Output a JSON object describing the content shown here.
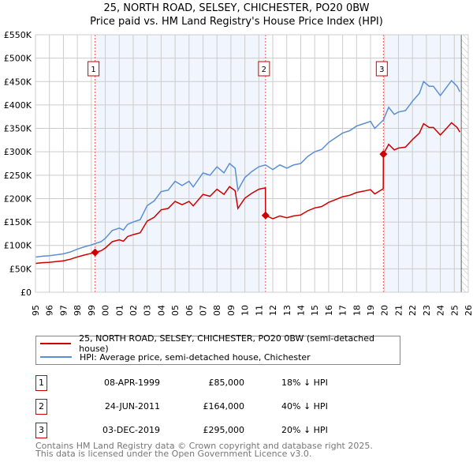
{
  "chart_data": {
    "type": "line",
    "title": "25, NORTH ROAD, SELSEY, CHICHESTER, PO20 0BW",
    "subtitle": "Price paid vs. HM Land Registry's House Price Index (HPI)",
    "xlim": [
      1995,
      2026
    ],
    "ylim": [
      0,
      550000
    ],
    "x_ticks": [
      "1995",
      "1996",
      "1997",
      "1998",
      "1999",
      "2000",
      "2001",
      "2002",
      "2003",
      "2004",
      "2005",
      "2006",
      "2007",
      "2008",
      "2009",
      "2010",
      "2011",
      "2012",
      "2013",
      "2014",
      "2015",
      "2016",
      "2017",
      "2018",
      "2019",
      "2020",
      "2021",
      "2022",
      "2023",
      "2024",
      "2025",
      "2026"
    ],
    "y_ticks": [
      {
        "v": 0,
        "label": "£0"
      },
      {
        "v": 50000,
        "label": "£50K"
      },
      {
        "v": 100000,
        "label": "£100K"
      },
      {
        "v": 150000,
        "label": "£150K"
      },
      {
        "v": 200000,
        "label": "£200K"
      },
      {
        "v": 250000,
        "label": "£250K"
      },
      {
        "v": 300000,
        "label": "£300K"
      },
      {
        "v": 350000,
        "label": "£350K"
      },
      {
        "v": 400000,
        "label": "£400K"
      },
      {
        "v": 450000,
        "label": "£450K"
      },
      {
        "v": 500000,
        "label": "£500K"
      },
      {
        "v": 550000,
        "label": "£550K"
      }
    ],
    "grid": true,
    "data_end": 2025.5,
    "series": [
      {
        "name": "25, NORTH ROAD, SELSEY, CHICHESTER, PO20 0BW (semi-detached house)",
        "color": "#cc0000",
        "points": [
          [
            1995,
            61500
          ],
          [
            1995.5,
            63000
          ],
          [
            1996,
            64000
          ],
          [
            1996.5,
            65600
          ],
          [
            1997,
            67000
          ],
          [
            1997.5,
            70500
          ],
          [
            1998,
            75400
          ],
          [
            1998.5,
            79500
          ],
          [
            1999,
            83000
          ],
          [
            1999.27,
            85000
          ],
          [
            1999.7,
            88600
          ],
          [
            2000,
            94300
          ],
          [
            2000.5,
            108000
          ],
          [
            2001,
            112000
          ],
          [
            2001.3,
            109000
          ],
          [
            2001.6,
            119000
          ],
          [
            2002,
            123000
          ],
          [
            2002.5,
            127000
          ],
          [
            2003,
            152000
          ],
          [
            2003.5,
            160000
          ],
          [
            2004,
            176000
          ],
          [
            2004.5,
            179000
          ],
          [
            2005,
            194000
          ],
          [
            2005.5,
            187000
          ],
          [
            2006,
            194000
          ],
          [
            2006.3,
            184500
          ],
          [
            2007,
            209000
          ],
          [
            2007.5,
            205000
          ],
          [
            2008,
            220000
          ],
          [
            2008.5,
            209000
          ],
          [
            2008.9,
            225500
          ],
          [
            2009.3,
            217000
          ],
          [
            2009.5,
            179000
          ],
          [
            2010,
            201000
          ],
          [
            2010.5,
            211500
          ],
          [
            2011,
            220000
          ],
          [
            2011.47,
            223000
          ],
          [
            2011.48,
            164000
          ],
          [
            2012,
            157000
          ],
          [
            2012.5,
            163000
          ],
          [
            2013,
            159000
          ],
          [
            2013.5,
            163000
          ],
          [
            2014,
            165000
          ],
          [
            2014.5,
            174000
          ],
          [
            2015,
            180000
          ],
          [
            2015.5,
            183000
          ],
          [
            2016,
            192000
          ],
          [
            2016.5,
            198000
          ],
          [
            2017,
            204000
          ],
          [
            2017.5,
            207000
          ],
          [
            2018,
            213000
          ],
          [
            2018.5,
            216000
          ],
          [
            2019,
            219000
          ],
          [
            2019.3,
            210000
          ],
          [
            2019.91,
            221000
          ],
          [
            2019.92,
            295000
          ],
          [
            2020.3,
            316000
          ],
          [
            2020.7,
            304000
          ],
          [
            2021,
            308000
          ],
          [
            2021.5,
            310000
          ],
          [
            2022,
            326000
          ],
          [
            2022.5,
            340000
          ],
          [
            2022.8,
            360000
          ],
          [
            2023.2,
            352000
          ],
          [
            2023.5,
            352000
          ],
          [
            2024,
            336000
          ],
          [
            2024.5,
            352000
          ],
          [
            2024.8,
            362000
          ],
          [
            2025.2,
            352000
          ],
          [
            2025.4,
            342000
          ]
        ]
      },
      {
        "name": "HPI: Average price, semi-detached house, Chichester",
        "color": "#5b8fd4",
        "points": [
          [
            1995,
            75000
          ],
          [
            1995.5,
            77000
          ],
          [
            1996,
            78000
          ],
          [
            1996.5,
            80000
          ],
          [
            1997,
            82000
          ],
          [
            1997.5,
            86000
          ],
          [
            1998,
            92000
          ],
          [
            1998.5,
            97000
          ],
          [
            1999,
            101000
          ],
          [
            1999.27,
            104000
          ],
          [
            1999.7,
            108000
          ],
          [
            2000,
            115000
          ],
          [
            2000.5,
            132000
          ],
          [
            2001,
            137000
          ],
          [
            2001.3,
            133000
          ],
          [
            2001.6,
            145000
          ],
          [
            2002,
            150000
          ],
          [
            2002.5,
            155000
          ],
          [
            2003,
            185000
          ],
          [
            2003.5,
            195000
          ],
          [
            2004,
            215000
          ],
          [
            2004.5,
            218000
          ],
          [
            2005,
            237000
          ],
          [
            2005.5,
            228000
          ],
          [
            2006,
            237000
          ],
          [
            2006.3,
            225000
          ],
          [
            2007,
            255000
          ],
          [
            2007.5,
            250000
          ],
          [
            2008,
            268000
          ],
          [
            2008.5,
            255000
          ],
          [
            2008.9,
            275000
          ],
          [
            2009.3,
            265000
          ],
          [
            2009.5,
            218000
          ],
          [
            2010,
            245000
          ],
          [
            2010.5,
            258000
          ],
          [
            2011,
            268000
          ],
          [
            2011.48,
            272000
          ],
          [
            2012,
            262000
          ],
          [
            2012.5,
            272000
          ],
          [
            2013,
            265000
          ],
          [
            2013.5,
            272000
          ],
          [
            2014,
            275000
          ],
          [
            2014.5,
            290000
          ],
          [
            2015,
            300000
          ],
          [
            2015.5,
            305000
          ],
          [
            2016,
            320000
          ],
          [
            2016.5,
            330000
          ],
          [
            2017,
            340000
          ],
          [
            2017.5,
            345000
          ],
          [
            2018,
            355000
          ],
          [
            2018.5,
            360000
          ],
          [
            2019,
            365000
          ],
          [
            2019.3,
            350000
          ],
          [
            2019.92,
            368000
          ],
          [
            2020.3,
            395000
          ],
          [
            2020.7,
            380000
          ],
          [
            2021,
            385000
          ],
          [
            2021.5,
            388000
          ],
          [
            2022,
            408000
          ],
          [
            2022.5,
            425000
          ],
          [
            2022.8,
            450000
          ],
          [
            2023.2,
            440000
          ],
          [
            2023.5,
            440000
          ],
          [
            2024,
            420000
          ],
          [
            2024.5,
            440000
          ],
          [
            2024.8,
            452000
          ],
          [
            2025.2,
            440000
          ],
          [
            2025.4,
            428000
          ]
        ]
      }
    ],
    "sales": [
      {
        "num": "1",
        "x": 1999.27,
        "price": 85000,
        "date": "08-APR-1999",
        "price_label": "£85,000",
        "hpi_label": "18% ↓ HPI"
      },
      {
        "num": "2",
        "x": 2011.48,
        "price": 164000,
        "date": "24-JUN-2011",
        "price_label": "£164,000",
        "hpi_label": "40% ↓ HPI"
      },
      {
        "num": "3",
        "x": 2019.92,
        "price": 295000,
        "date": "03-DEC-2019",
        "price_label": "£295,000",
        "hpi_label": "20% ↓ HPI"
      }
    ]
  },
  "footer": {
    "line1": "Contains HM Land Registry data © Crown copyright and database right 2025.",
    "line2": "This data is licensed under the Open Government Licence v3.0."
  }
}
